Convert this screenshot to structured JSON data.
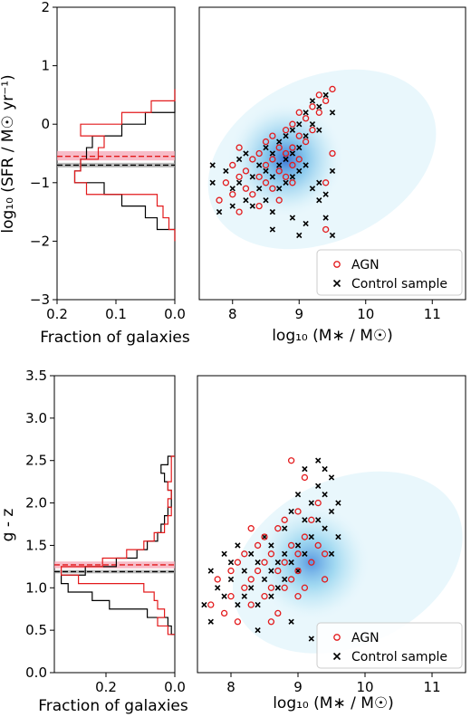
{
  "colors": {
    "agn": "#e31a1c",
    "control": "#000000",
    "agn_band": "#f4a6b6",
    "control_band": "#a0a0a0",
    "density": "#1f8fd6"
  },
  "chart_data": [
    {
      "type": "histogram",
      "panel": "top-left",
      "orientation": "horizontal",
      "ylabel": "log₁₀ (SFR / M☉ yr⁻¹)",
      "xlabel": "Fraction of galaxies",
      "xlim": [
        0.2,
        0.0
      ],
      "ylim": [
        -3,
        2
      ],
      "xticks": [
        "0.2",
        "0.1",
        "0.0"
      ],
      "yticks": [
        "2",
        "1",
        "0",
        "−1",
        "−2",
        "−3"
      ],
      "agn_hist": {
        "bins": [
          -2.0,
          -1.8,
          -1.6,
          -1.4,
          -1.2,
          -1.0,
          -0.8,
          -0.6,
          -0.4,
          -0.2,
          0.0,
          0.2,
          0.4,
          0.6
        ],
        "fractions": [
          0.0,
          0.01,
          0.02,
          0.03,
          0.15,
          0.17,
          0.16,
          0.13,
          0.12,
          0.16,
          0.09,
          0.04,
          0.0
        ]
      },
      "control_hist": {
        "bins": [
          -2.0,
          -1.8,
          -1.6,
          -1.4,
          -1.2,
          -1.0,
          -0.8,
          -0.6,
          -0.4,
          -0.2,
          0.0,
          0.2,
          0.4,
          0.6
        ],
        "fractions": [
          0.0,
          0.03,
          0.05,
          0.09,
          0.12,
          0.17,
          0.16,
          0.15,
          0.14,
          0.09,
          0.05,
          0.0,
          0.0
        ]
      },
      "agn_median": -0.55,
      "agn_band": [
        -0.62,
        -0.46
      ],
      "control_median": -0.7,
      "control_band": [
        -0.74,
        -0.66
      ]
    },
    {
      "type": "scatter",
      "panel": "top-right",
      "xlabel": "log₁₀ (M∗ / M☉)",
      "xlim": [
        7.5,
        11.5
      ],
      "ylim": [
        -3,
        2
      ],
      "xticks": [
        "8",
        "9",
        "10",
        "11"
      ],
      "legend": {
        "position": "lower right",
        "entries": [
          "AGN",
          "Control sample"
        ]
      },
      "density_centre": [
        8.8,
        -0.6
      ],
      "agn": [
        [
          7.8,
          -1.3
        ],
        [
          7.9,
          -1.0
        ],
        [
          8.0,
          -0.7
        ],
        [
          8.0,
          -1.2
        ],
        [
          8.1,
          -0.9
        ],
        [
          8.1,
          -1.5
        ],
        [
          8.2,
          -0.8
        ],
        [
          8.2,
          -1.1
        ],
        [
          8.3,
          -0.6
        ],
        [
          8.3,
          -1.2
        ],
        [
          8.4,
          -0.5
        ],
        [
          8.4,
          -0.9
        ],
        [
          8.5,
          -0.3
        ],
        [
          8.5,
          -0.7
        ],
        [
          8.5,
          -1.0
        ],
        [
          8.6,
          -0.2
        ],
        [
          8.6,
          -0.6
        ],
        [
          8.6,
          -1.1
        ],
        [
          8.7,
          -0.4
        ],
        [
          8.7,
          -0.8
        ],
        [
          8.8,
          -0.1
        ],
        [
          8.8,
          -0.5
        ],
        [
          8.8,
          -0.9
        ],
        [
          8.9,
          0.0
        ],
        [
          8.9,
          -0.4
        ],
        [
          8.9,
          -0.7
        ],
        [
          9.0,
          0.2
        ],
        [
          9.0,
          -0.2
        ],
        [
          9.0,
          -0.6
        ],
        [
          9.1,
          0.1
        ],
        [
          9.1,
          -0.3
        ],
        [
          9.2,
          0.3
        ],
        [
          9.2,
          -0.1
        ],
        [
          9.3,
          0.5
        ],
        [
          9.3,
          0.2
        ],
        [
          9.4,
          0.4
        ],
        [
          9.4,
          -1.0
        ],
        [
          9.4,
          -1.8
        ],
        [
          9.5,
          0.6
        ],
        [
          9.5,
          -0.5
        ],
        [
          8.9,
          -1.0
        ],
        [
          8.7,
          -1.3
        ],
        [
          8.4,
          -1.4
        ],
        [
          8.1,
          -0.4
        ]
      ],
      "control": [
        [
          7.7,
          -0.7
        ],
        [
          7.7,
          -1.0
        ],
        [
          7.8,
          -1.5
        ],
        [
          7.9,
          -0.8
        ],
        [
          8.0,
          -1.1
        ],
        [
          8.0,
          -1.4
        ],
        [
          8.1,
          -0.6
        ],
        [
          8.1,
          -1.0
        ],
        [
          8.2,
          -1.3
        ],
        [
          8.2,
          -0.5
        ],
        [
          8.3,
          -0.9
        ],
        [
          8.3,
          -1.4
        ],
        [
          8.4,
          -0.7
        ],
        [
          8.4,
          -1.1
        ],
        [
          8.5,
          -0.4
        ],
        [
          8.5,
          -0.8
        ],
        [
          8.5,
          -1.3
        ],
        [
          8.6,
          -0.5
        ],
        [
          8.6,
          -0.9
        ],
        [
          8.6,
          -1.5
        ],
        [
          8.7,
          -0.3
        ],
        [
          8.7,
          -0.7
        ],
        [
          8.7,
          -1.1
        ],
        [
          8.8,
          -0.2
        ],
        [
          8.8,
          -0.6
        ],
        [
          8.8,
          -1.0
        ],
        [
          8.9,
          -0.1
        ],
        [
          8.9,
          -0.5
        ],
        [
          8.9,
          -0.9
        ],
        [
          9.0,
          0.0
        ],
        [
          9.0,
          -0.4
        ],
        [
          9.0,
          -0.8
        ],
        [
          9.0,
          -1.9
        ],
        [
          9.1,
          0.2
        ],
        [
          9.1,
          -0.2
        ],
        [
          9.1,
          -0.7
        ],
        [
          9.1,
          -1.7
        ],
        [
          9.2,
          0.4
        ],
        [
          9.2,
          0.0
        ],
        [
          9.2,
          -1.1
        ],
        [
          9.3,
          0.3
        ],
        [
          9.3,
          -0.1
        ],
        [
          9.3,
          -1.3
        ],
        [
          9.4,
          0.5
        ],
        [
          9.4,
          -1.2
        ],
        [
          9.4,
          -1.6
        ],
        [
          9.5,
          0.2
        ],
        [
          9.5,
          -0.8
        ],
        [
          9.5,
          -1.9
        ],
        [
          8.9,
          -1.6
        ],
        [
          8.6,
          -1.8
        ],
        [
          9.3,
          -1.0
        ]
      ]
    },
    {
      "type": "histogram",
      "panel": "bottom-left",
      "orientation": "horizontal",
      "ylabel": "g - z",
      "xlabel": "Fraction of galaxies",
      "xlim": [
        0.35,
        0.0
      ],
      "ylim": [
        0.0,
        3.5
      ],
      "xticks": [
        "0.2",
        "0.0"
      ],
      "yticks": [
        "3.5",
        "3.0",
        "2.5",
        "2.0",
        "1.5",
        "1.0",
        "0.5",
        "0.0"
      ],
      "agn_hist": {
        "bins": [
          0.45,
          0.55,
          0.65,
          0.75,
          0.85,
          0.95,
          1.05,
          1.15,
          1.25,
          1.35,
          1.45,
          1.55,
          1.65,
          1.75,
          1.85,
          1.95,
          2.05,
          2.15,
          2.25,
          2.35,
          2.45,
          2.55
        ],
        "fractions": [
          0.02,
          0.05,
          0.03,
          0.05,
          0.06,
          0.09,
          0.28,
          0.33,
          0.21,
          0.14,
          0.09,
          0.06,
          0.03,
          0.02,
          0.01,
          0.02,
          0.01,
          0.02,
          0.01,
          0.01,
          0.01
        ]
      },
      "control_hist": {
        "bins": [
          0.45,
          0.55,
          0.65,
          0.75,
          0.85,
          0.95,
          1.05,
          1.15,
          1.25,
          1.35,
          1.45,
          1.55,
          1.65,
          1.75,
          1.85,
          1.95,
          2.05,
          2.15,
          2.25,
          2.35,
          2.45,
          2.55
        ],
        "fractions": [
          0.01,
          0.02,
          0.08,
          0.19,
          0.24,
          0.31,
          0.33,
          0.26,
          0.17,
          0.11,
          0.08,
          0.05,
          0.04,
          0.03,
          0.02,
          0.01,
          0.01,
          0.02,
          0.03,
          0.04,
          0.02
        ]
      },
      "agn_median": 1.27,
      "agn_band": [
        1.23,
        1.31
      ],
      "control_median": 1.19,
      "control_band": [
        1.17,
        1.21
      ]
    },
    {
      "type": "scatter",
      "panel": "bottom-right",
      "xlabel": "log₁₀ (M∗ / M☉)",
      "xlim": [
        7.5,
        11.5
      ],
      "ylim": [
        0.0,
        3.5
      ],
      "xticks": [
        "8",
        "9",
        "10",
        "11"
      ],
      "legend": {
        "position": "lower right",
        "entries": [
          "AGN",
          "Control sample"
        ]
      },
      "density_centre": [
        9.2,
        1.3
      ],
      "agn": [
        [
          7.7,
          0.8
        ],
        [
          7.8,
          1.1
        ],
        [
          7.9,
          0.7
        ],
        [
          8.0,
          1.2
        ],
        [
          8.0,
          0.9
        ],
        [
          8.1,
          1.3
        ],
        [
          8.2,
          1.0
        ],
        [
          8.2,
          1.4
        ],
        [
          8.3,
          1.1
        ],
        [
          8.3,
          0.8
        ],
        [
          8.4,
          1.5
        ],
        [
          8.4,
          1.2
        ],
        [
          8.5,
          0.9
        ],
        [
          8.5,
          1.3
        ],
        [
          8.5,
          1.6
        ],
        [
          8.6,
          1.0
        ],
        [
          8.6,
          1.4
        ],
        [
          8.7,
          1.2
        ],
        [
          8.7,
          1.7
        ],
        [
          8.7,
          0.7
        ],
        [
          8.8,
          1.3
        ],
        [
          8.8,
          1.0
        ],
        [
          8.8,
          1.8
        ],
        [
          8.9,
          1.5
        ],
        [
          8.9,
          2.5
        ],
        [
          8.9,
          1.1
        ],
        [
          9.0,
          1.4
        ],
        [
          9.0,
          1.9
        ],
        [
          9.0,
          1.2
        ],
        [
          9.1,
          1.6
        ],
        [
          9.1,
          2.3
        ],
        [
          9.1,
          1.0
        ],
        [
          9.2,
          1.3
        ],
        [
          9.2,
          1.8
        ],
        [
          9.3,
          1.5
        ],
        [
          9.3,
          2.0
        ],
        [
          9.4,
          1.4
        ],
        [
          9.4,
          1.1
        ],
        [
          8.6,
          0.6
        ],
        [
          8.3,
          1.7
        ],
        [
          9.0,
          0.9
        ],
        [
          8.1,
          0.6
        ]
      ],
      "control": [
        [
          7.6,
          0.8
        ],
        [
          7.7,
          1.2
        ],
        [
          7.7,
          0.6
        ],
        [
          7.8,
          1.0
        ],
        [
          7.9,
          1.4
        ],
        [
          7.9,
          0.9
        ],
        [
          8.0,
          1.1
        ],
        [
          8.0,
          1.3
        ],
        [
          8.1,
          0.8
        ],
        [
          8.1,
          1.5
        ],
        [
          8.2,
          1.2
        ],
        [
          8.2,
          0.9
        ],
        [
          8.3,
          1.4
        ],
        [
          8.3,
          1.0
        ],
        [
          8.4,
          1.3
        ],
        [
          8.4,
          0.8
        ],
        [
          8.5,
          1.1
        ],
        [
          8.5,
          1.6
        ],
        [
          8.6,
          1.2
        ],
        [
          8.6,
          0.9
        ],
        [
          8.6,
          1.5
        ],
        [
          8.7,
          1.3
        ],
        [
          8.7,
          1.0
        ],
        [
          8.8,
          1.4
        ],
        [
          8.8,
          1.7
        ],
        [
          8.8,
          1.1
        ],
        [
          8.9,
          1.3
        ],
        [
          8.9,
          1.9
        ],
        [
          9.0,
          1.5
        ],
        [
          9.0,
          2.1
        ],
        [
          9.0,
          1.2
        ],
        [
          9.1,
          1.8
        ],
        [
          9.1,
          2.4
        ],
        [
          9.1,
          1.4
        ],
        [
          9.2,
          2.0
        ],
        [
          9.2,
          1.6
        ],
        [
          9.3,
          2.2
        ],
        [
          9.3,
          1.8
        ],
        [
          9.3,
          2.5
        ],
        [
          9.4,
          2.1
        ],
        [
          9.4,
          1.7
        ],
        [
          9.4,
          2.4
        ],
        [
          9.5,
          1.9
        ],
        [
          9.5,
          2.3
        ],
        [
          9.5,
          1.4
        ],
        [
          9.6,
          1.6
        ],
        [
          9.6,
          2.0
        ],
        [
          8.9,
          0.6
        ],
        [
          9.2,
          0.4
        ],
        [
          8.4,
          0.5
        ]
      ]
    }
  ]
}
